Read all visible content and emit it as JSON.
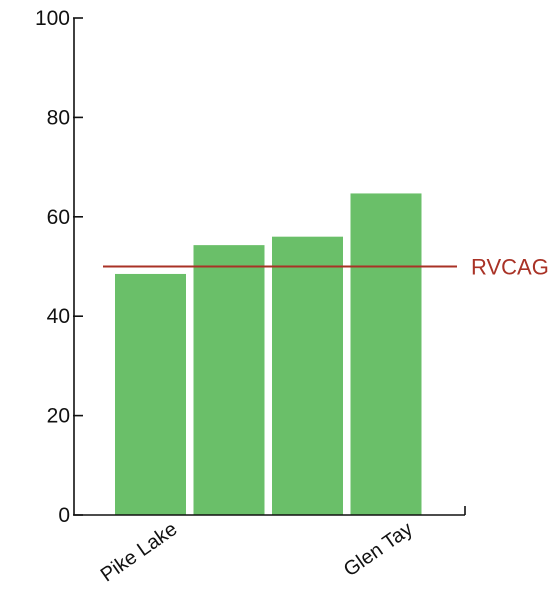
{
  "chart_data": {
    "type": "bar",
    "title": "",
    "xlabel": "",
    "ylabel": "",
    "ylim": [
      0,
      100
    ],
    "yticks": [
      0,
      20,
      40,
      60,
      80,
      100
    ],
    "categories": [
      "Pike Lake",
      "",
      "",
      "Glen Tay"
    ],
    "values": [
      48.5,
      54.3,
      56.0,
      64.7
    ],
    "bar_color": "#6abf69",
    "reference_line": {
      "label": "RVCAG",
      "value": 50,
      "color": "#a93226"
    },
    "grid": false,
    "legend": "none"
  }
}
